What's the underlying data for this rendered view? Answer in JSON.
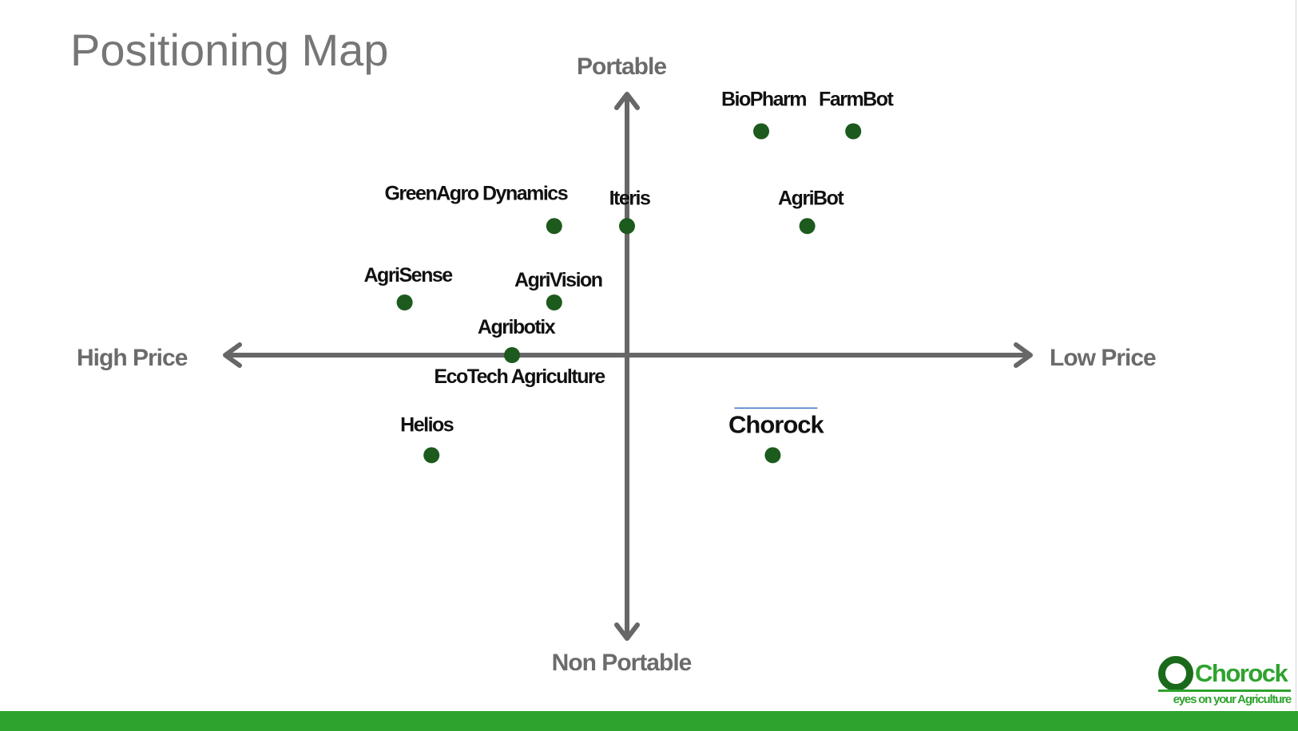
{
  "slide": {
    "title": "Positioning Map"
  },
  "axes": {
    "top": "Portable",
    "bottom": "Non Portable",
    "left": "High Price",
    "right": "Low Price"
  },
  "points": [
    {
      "id": "biopharm",
      "label": "BioPharm",
      "x": 0.35,
      "y": 0.85
    },
    {
      "id": "farmbot",
      "label": "FarmBot",
      "x": 0.59,
      "y": 0.85
    },
    {
      "id": "greenagro-dynamics",
      "label": "GreenAgro Dynamics",
      "x": -0.19,
      "y": 0.49
    },
    {
      "id": "iteris",
      "label": "Iteris",
      "x": 0.0,
      "y": 0.49
    },
    {
      "id": "agribot",
      "label": "AgriBot",
      "x": 0.47,
      "y": 0.49
    },
    {
      "id": "agrisense",
      "label": "AgriSense",
      "x": -0.58,
      "y": 0.2
    },
    {
      "id": "agrivision",
      "label": "AgriVision",
      "x": -0.19,
      "y": 0.2
    },
    {
      "id": "agribotix-ecotech",
      "label": "Agribotix",
      "label2": "EcoTech Agriculture",
      "x": -0.3,
      "y": 0.0
    },
    {
      "id": "helios",
      "label": "Helios",
      "x": -0.51,
      "y": -0.38
    },
    {
      "id": "chorock",
      "label": "Chorock",
      "x": 0.38,
      "y": -0.38,
      "highlight": true
    }
  ],
  "colors": {
    "point": "#1d5a1d",
    "axis": "#676767",
    "highlight_text": "#2ea32e",
    "highlight_line": "#3b73c4",
    "brand": "#2ea32e",
    "brand_dark": "#1b6a1b",
    "bottom_bar": "#2ea32e"
  },
  "logo": {
    "wordmark": "Chorock",
    "tagline": "eyes on your Agriculture",
    "icon": "ring-logo-icon"
  }
}
